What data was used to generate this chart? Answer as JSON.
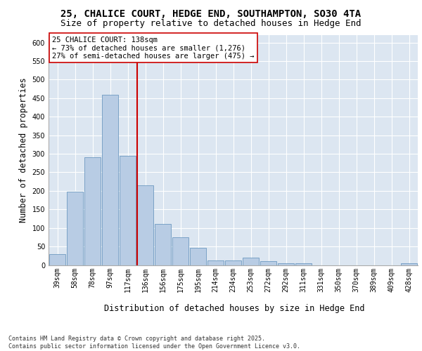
{
  "title_line1": "25, CHALICE COURT, HEDGE END, SOUTHAMPTON, SO30 4TA",
  "title_line2": "Size of property relative to detached houses in Hedge End",
  "xlabel": "Distribution of detached houses by size in Hedge End",
  "ylabel": "Number of detached properties",
  "categories": [
    "39sqm",
    "58sqm",
    "78sqm",
    "97sqm",
    "117sqm",
    "136sqm",
    "156sqm",
    "175sqm",
    "195sqm",
    "214sqm",
    "234sqm",
    "253sqm",
    "272sqm",
    "292sqm",
    "311sqm",
    "331sqm",
    "350sqm",
    "370sqm",
    "389sqm",
    "409sqm",
    "428sqm"
  ],
  "values": [
    30,
    197,
    290,
    460,
    295,
    215,
    110,
    75,
    47,
    13,
    12,
    20,
    10,
    5,
    5,
    0,
    0,
    0,
    0,
    0,
    5
  ],
  "bar_color": "#b8cce4",
  "bar_edge_color": "#5b8db8",
  "background_color": "#dce6f1",
  "grid_color": "#ffffff",
  "vline_color": "#cc0000",
  "annotation_text": "25 CHALICE COURT: 138sqm\n← 73% of detached houses are smaller (1,276)\n27% of semi-detached houses are larger (475) →",
  "annotation_box_color": "#ffffff",
  "annotation_box_edge": "#cc0000",
  "ylim": [
    0,
    620
  ],
  "yticks": [
    0,
    50,
    100,
    150,
    200,
    250,
    300,
    350,
    400,
    450,
    500,
    550,
    600
  ],
  "footnote": "Contains HM Land Registry data © Crown copyright and database right 2025.\nContains public sector information licensed under the Open Government Licence v3.0.",
  "title_fontsize": 10,
  "subtitle_fontsize": 9,
  "axis_label_fontsize": 8.5,
  "tick_fontsize": 7,
  "annotation_fontsize": 7.5,
  "footnote_fontsize": 6
}
